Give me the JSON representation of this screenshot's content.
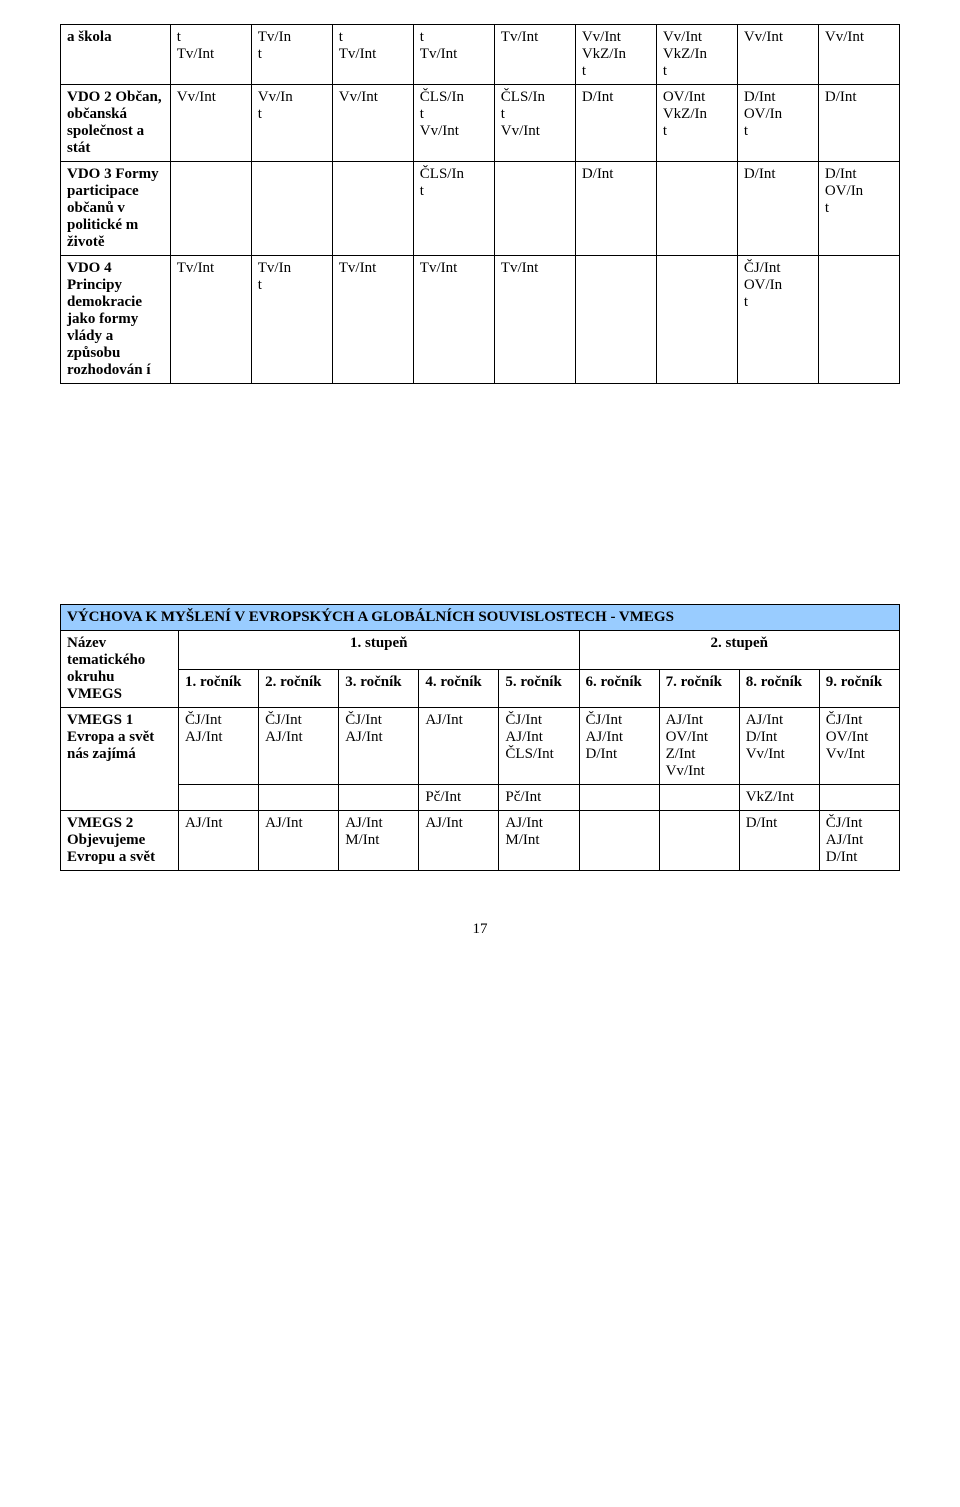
{
  "table1": {
    "col_widths": [
      "13%",
      "9.6%",
      "9.6%",
      "9.6%",
      "9.6%",
      "9.6%",
      "9.6%",
      "9.6%",
      "9.6%",
      "9.6%",
      "9.6%"
    ],
    "rows": [
      {
        "label": "a škola",
        "c": [
          {
            "lines": [
              "t",
              "",
              "Tv/Int"
            ]
          },
          {
            "lines": [
              "",
              "Tv/In",
              "t"
            ]
          },
          {
            "lines": [
              "t",
              "",
              "Tv/Int"
            ]
          },
          {
            "lines": [
              "t",
              "",
              "Tv/Int"
            ]
          },
          {
            "lines": [
              "",
              "",
              "Tv/Int"
            ]
          },
          {
            "lines": [
              "Vv/Int",
              "VkZ/In",
              "t"
            ]
          },
          {
            "lines": [
              "Vv/Int",
              "VkZ/In",
              "t"
            ]
          },
          {
            "lines": [
              "Vv/Int"
            ]
          },
          {
            "lines": [
              "Vv/Int"
            ]
          }
        ]
      },
      {
        "label": "VDO 2 Občan, občanská společnost a stát",
        "c": [
          {
            "lines": [
              "",
              "",
              "",
              "Vv/Int"
            ]
          },
          {
            "lines": [
              "",
              "",
              "Vv/In",
              "t"
            ]
          },
          {
            "lines": [
              "",
              "",
              "",
              "Vv/Int"
            ]
          },
          {
            "lines": [
              "",
              "",
              "ČLS/In",
              "t",
              "Vv/Int"
            ]
          },
          {
            "lines": [
              "",
              "",
              "ČLS/In",
              "t",
              "Vv/Int"
            ]
          },
          {
            "lines": [
              "D/Int"
            ]
          },
          {
            "lines": [
              "",
              "OV/Int",
              "",
              "",
              "VkZ/In",
              "t"
            ]
          },
          {
            "lines": [
              "D/Int",
              "OV/In",
              "t"
            ]
          },
          {
            "lines": [
              "D/Int"
            ]
          }
        ]
      },
      {
        "label": "VDO 3 Formy participace občanů v politické m životě",
        "c": [
          {
            "lines": []
          },
          {
            "lines": []
          },
          {
            "lines": []
          },
          {
            "lines": [
              "",
              "",
              "ČLS/In",
              "t"
            ]
          },
          {
            "lines": []
          },
          {
            "lines": [
              "D/Int"
            ]
          },
          {
            "lines": []
          },
          {
            "lines": [
              "D/Int"
            ]
          },
          {
            "lines": [
              "D/Int",
              "OV/In",
              "t"
            ]
          }
        ]
      },
      {
        "label": "VDO 4 Principy demokracie jako formy vlády a způsobu rozhodován í",
        "c": [
          {
            "lines": [
              "",
              "",
              "Tv/Int"
            ]
          },
          {
            "lines": [
              "",
              "",
              "Tv/In",
              "t"
            ]
          },
          {
            "lines": [
              "",
              "",
              "Tv/Int"
            ]
          },
          {
            "lines": [
              "",
              "",
              "Tv/Int"
            ]
          },
          {
            "lines": [
              "",
              "",
              "Tv/Int"
            ]
          },
          {
            "lines": []
          },
          {
            "lines": []
          },
          {
            "lines": [
              "ČJ/Int",
              "OV/In",
              "t"
            ]
          },
          {
            "lines": []
          }
        ]
      }
    ]
  },
  "table2": {
    "title": "VÝCHOVA K MYŠLENÍ V EVROPSKÝCH A GLOBÁLNÍCH SOUVISLOSTECH - VMEGS",
    "name_header": "Název tematického okruhu VMEGS",
    "grade_left": "1. stupeň",
    "grade_right": "2. stupeň",
    "cols": [
      "1. ročník",
      "2. ročník",
      "3. ročník",
      "4. ročník",
      "5. ročník",
      "6. ročník",
      "7. ročník",
      "8. ročník",
      "9. ročník"
    ],
    "row1_label": "VMEGS 1 Evropa a svět nás zajímá",
    "row1": [
      {
        "lines": [
          "ČJ/Int",
          "AJ/Int"
        ]
      },
      {
        "lines": [
          "ČJ/Int",
          "AJ/Int"
        ]
      },
      {
        "lines": [
          "ČJ/Int",
          "AJ/Int"
        ]
      },
      {
        "lines": [
          "",
          "AJ/Int"
        ]
      },
      {
        "lines": [
          "ČJ/Int",
          "AJ/Int",
          "",
          "ČLS/Int"
        ]
      },
      {
        "lines": [
          "ČJ/Int",
          "AJ/Int",
          "D/Int"
        ]
      },
      {
        "lines": [
          "",
          "AJ/Int",
          "",
          "OV/Int",
          "",
          "Z/Int",
          "Vv/Int"
        ]
      },
      {
        "lines": [
          "",
          "AJ/Int",
          "D/Int",
          "",
          "",
          "",
          "Vv/Int"
        ]
      },
      {
        "lines": [
          "ČJ/Int",
          "",
          "",
          "OV/Int",
          "",
          "",
          "Vv/Int"
        ]
      }
    ],
    "row_gap": [
      {
        "lines": [
          "",
          "",
          "",
          "Pč/Int"
        ]
      },
      {
        "lines": [
          "",
          "",
          "",
          "Pč/Int"
        ]
      },
      {
        "lines": [
          "",
          "VkZ/Int"
        ]
      }
    ],
    "row2_label": "VMEGS 2 Objevujeme Evropu a svět",
    "row2": [
      {
        "lines": [
          "",
          "AJ/Int"
        ]
      },
      {
        "lines": [
          "",
          "AJ/Int"
        ]
      },
      {
        "lines": [
          "",
          "AJ/Int",
          "M/Int"
        ]
      },
      {
        "lines": [
          "",
          "AJ/Int"
        ]
      },
      {
        "lines": [
          "",
          "AJ/Int",
          "M/Int"
        ]
      },
      {
        "lines": []
      },
      {
        "lines": [
          "",
          "",
          "",
          "D/Int"
        ]
      },
      {
        "lines": [
          "ČJ/Int",
          "AJ/Int",
          "",
          "D/Int"
        ]
      }
    ]
  },
  "page_number": "17"
}
